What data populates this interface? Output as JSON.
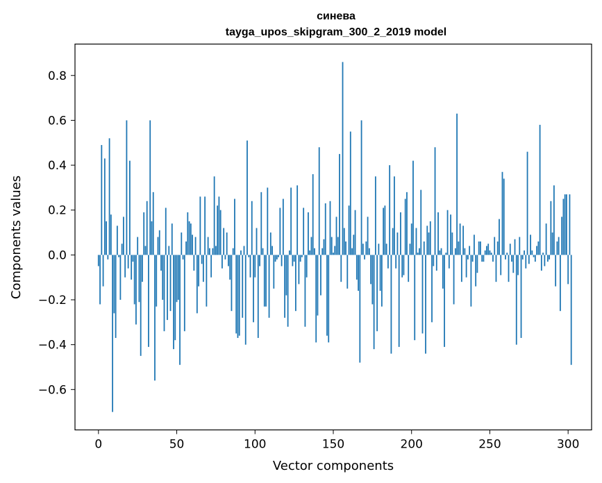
{
  "chart_data": {
    "type": "bar",
    "title_line1": "синева",
    "title_line2": "tayga_upos_skipgram_300_2_2019 model",
    "xlabel": "Vector components",
    "ylabel": "Components values",
    "xlim": [
      -15,
      315
    ],
    "ylim": [
      -0.78,
      0.94
    ],
    "xticks": [
      0,
      50,
      100,
      150,
      200,
      250,
      300
    ],
    "yticks": [
      -0.6,
      -0.4,
      -0.2,
      0.0,
      0.2,
      0.4,
      0.6,
      0.8
    ],
    "ytick_labels": [
      "−0.6",
      "−0.4",
      "−0.2",
      "0.0",
      "0.2",
      "0.4",
      "0.6",
      "0.8"
    ],
    "bar_color": "#1f77b4",
    "grid": false,
    "values": [
      -0.05,
      -0.22,
      0.49,
      -0.14,
      0.43,
      0.15,
      -0.02,
      0.52,
      0.18,
      -0.7,
      -0.26,
      -0.37,
      0.13,
      -0.01,
      -0.2,
      0.05,
      0.17,
      -0.1,
      0.6,
      -0.06,
      0.42,
      -0.11,
      -0.03,
      -0.22,
      -0.31,
      0.08,
      -0.21,
      -0.45,
      -0.12,
      0.19,
      0.04,
      0.24,
      -0.41,
      0.6,
      0.15,
      0.28,
      -0.56,
      -0.23,
      0.08,
      0.11,
      -0.07,
      -0.2,
      -0.34,
      0.21,
      -0.29,
      0.04,
      -0.25,
      0.14,
      -0.42,
      -0.38,
      -0.21,
      -0.2,
      -0.49,
      0.1,
      -0.02,
      -0.34,
      0.06,
      0.19,
      0.15,
      0.14,
      0.09,
      -0.07,
      0.08,
      -0.26,
      -0.14,
      0.26,
      -0.04,
      -0.12,
      0.26,
      -0.23,
      0.08,
      0.03,
      -0.1,
      0.03,
      0.35,
      0.04,
      0.22,
      0.26,
      0.2,
      -0.06,
      0.12,
      -0.02,
      0.1,
      -0.05,
      -0.11,
      -0.25,
      0.03,
      0.25,
      -0.35,
      -0.37,
      -0.36,
      0.02,
      -0.28,
      0.04,
      -0.4,
      0.51,
      -0.01,
      -0.1,
      0.24,
      -0.3,
      -0.1,
      0.12,
      -0.37,
      -0.05,
      0.28,
      0.03,
      -0.23,
      -0.23,
      0.3,
      -0.28,
      0.1,
      0.04,
      -0.15,
      -0.03,
      -0.02,
      -0.01,
      0.21,
      -0.05,
      0.25,
      -0.28,
      -0.18,
      -0.32,
      0.02,
      0.3,
      -0.05,
      -0.03,
      -0.25,
      0.31,
      -0.13,
      -0.03,
      -0.01,
      0.21,
      -0.32,
      -0.1,
      0.19,
      0.02,
      0.08,
      0.36,
      0.03,
      -0.39,
      -0.27,
      0.48,
      -0.18,
      0.03,
      0.07,
      0.23,
      -0.36,
      -0.39,
      0.24,
      0.08,
      0.01,
      0.04,
      0.17,
      0.08,
      0.45,
      -0.12,
      0.86,
      0.12,
      0.06,
      -0.15,
      0.22,
      0.55,
      0.03,
      0.09,
      0.2,
      -0.11,
      -0.16,
      -0.48,
      0.6,
      0.05,
      -0.02,
      0.06,
      0.17,
      0.03,
      -0.13,
      -0.22,
      -0.42,
      0.35,
      -0.34,
      0.05,
      -0.16,
      -0.23,
      0.21,
      0.22,
      0.05,
      -0.06,
      0.4,
      -0.44,
      0.12,
      0.35,
      -0.06,
      0.1,
      -0.41,
      0.19,
      -0.1,
      -0.09,
      0.25,
      0.28,
      -0.12,
      0.05,
      0.14,
      0.42,
      -0.38,
      0.12,
      0.01,
      0.03,
      0.29,
      -0.35,
      0.06,
      -0.44,
      0.13,
      0.1,
      0.15,
      -0.3,
      -0.05,
      0.48,
      -0.07,
      0.19,
      0.02,
      0.03,
      -0.15,
      -0.41,
      0.01,
      0.2,
      -0.06,
      0.18,
      0.1,
      -0.22,
      0.03,
      0.63,
      0.06,
      0.14,
      -0.12,
      0.13,
      0.03,
      -0.1,
      -0.02,
      0.04,
      -0.23,
      -0.03,
      0.09,
      -0.14,
      -0.08,
      0.06,
      0.06,
      -0.03,
      -0.03,
      0.02,
      0.04,
      0.05,
      0.02,
      0.01,
      -0.03,
      0.08,
      -0.12,
      0.06,
      0.16,
      -0.09,
      0.37,
      0.34,
      -0.02,
      0.01,
      -0.12,
      0.05,
      -0.03,
      -0.08,
      0.07,
      -0.4,
      -0.09,
      0.08,
      -0.37,
      -0.02,
      0.02,
      -0.06,
      0.46,
      -0.04,
      0.09,
      0.02,
      -0.01,
      -0.03,
      0.04,
      0.06,
      0.58,
      -0.07,
      0.01,
      -0.05,
      0.14,
      -0.03,
      -0.02,
      0.24,
      0.1,
      0.31,
      -0.14,
      0.06,
      0.08,
      -0.25,
      0.17,
      0.25,
      0.27,
      0.27,
      -0.13,
      0.27,
      -0.49
    ]
  }
}
